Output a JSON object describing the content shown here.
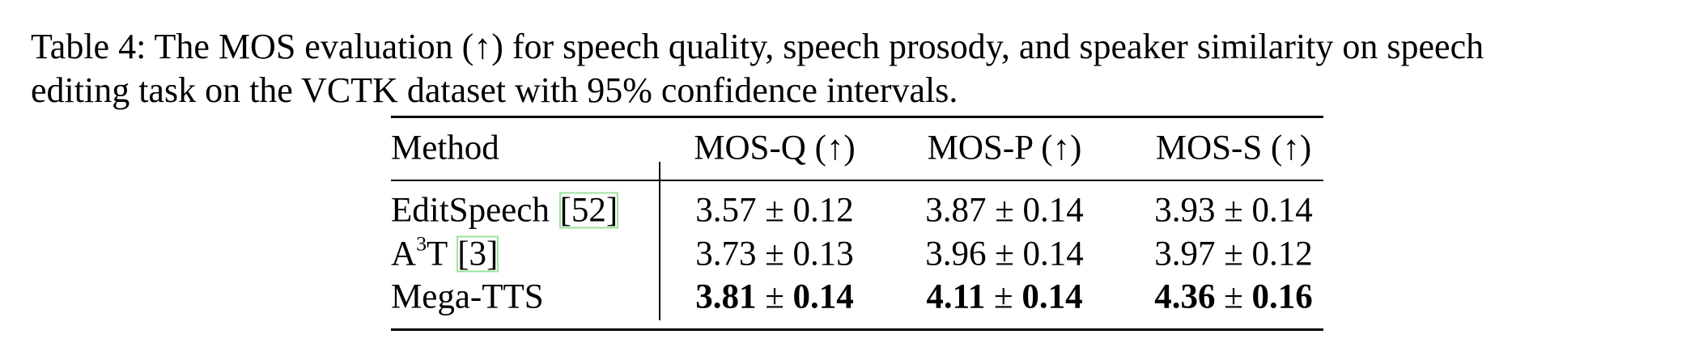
{
  "caption": {
    "label": "Table 4:",
    "lines": [
      "The MOS evaluation (↑) for speech quality, speech prosody, and speaker similarity on speech",
      "editing task on the VCTK dataset with 95% confidence intervals."
    ]
  },
  "table": {
    "pm": "±",
    "header": [
      "Method",
      "MOS-Q (↑)",
      "MOS-P (↑)",
      "MOS-S (↑)"
    ],
    "rows": [
      {
        "method": {
          "base": "EditSpeech"
        },
        "cite": "52",
        "bold": false,
        "cells": [
          {
            "mean": 3.57,
            "ci": 0.12
          },
          {
            "mean": 3.87,
            "ci": 0.14
          },
          {
            "mean": 3.93,
            "ci": 0.14
          }
        ]
      },
      {
        "method": {
          "base": "A",
          "sup": "3",
          "tail": "T"
        },
        "cite": "3",
        "bold": false,
        "cells": [
          {
            "mean": 3.73,
            "ci": 0.13
          },
          {
            "mean": 3.96,
            "ci": 0.14
          },
          {
            "mean": 3.97,
            "ci": 0.12
          }
        ]
      },
      {
        "method": {
          "base": "Mega-TTS"
        },
        "bold": true,
        "cells": [
          {
            "mean": 3.81,
            "ci": 0.14
          },
          {
            "mean": 4.11,
            "ci": 0.14
          },
          {
            "mean": 4.36,
            "ci": 0.16
          }
        ]
      }
    ]
  }
}
